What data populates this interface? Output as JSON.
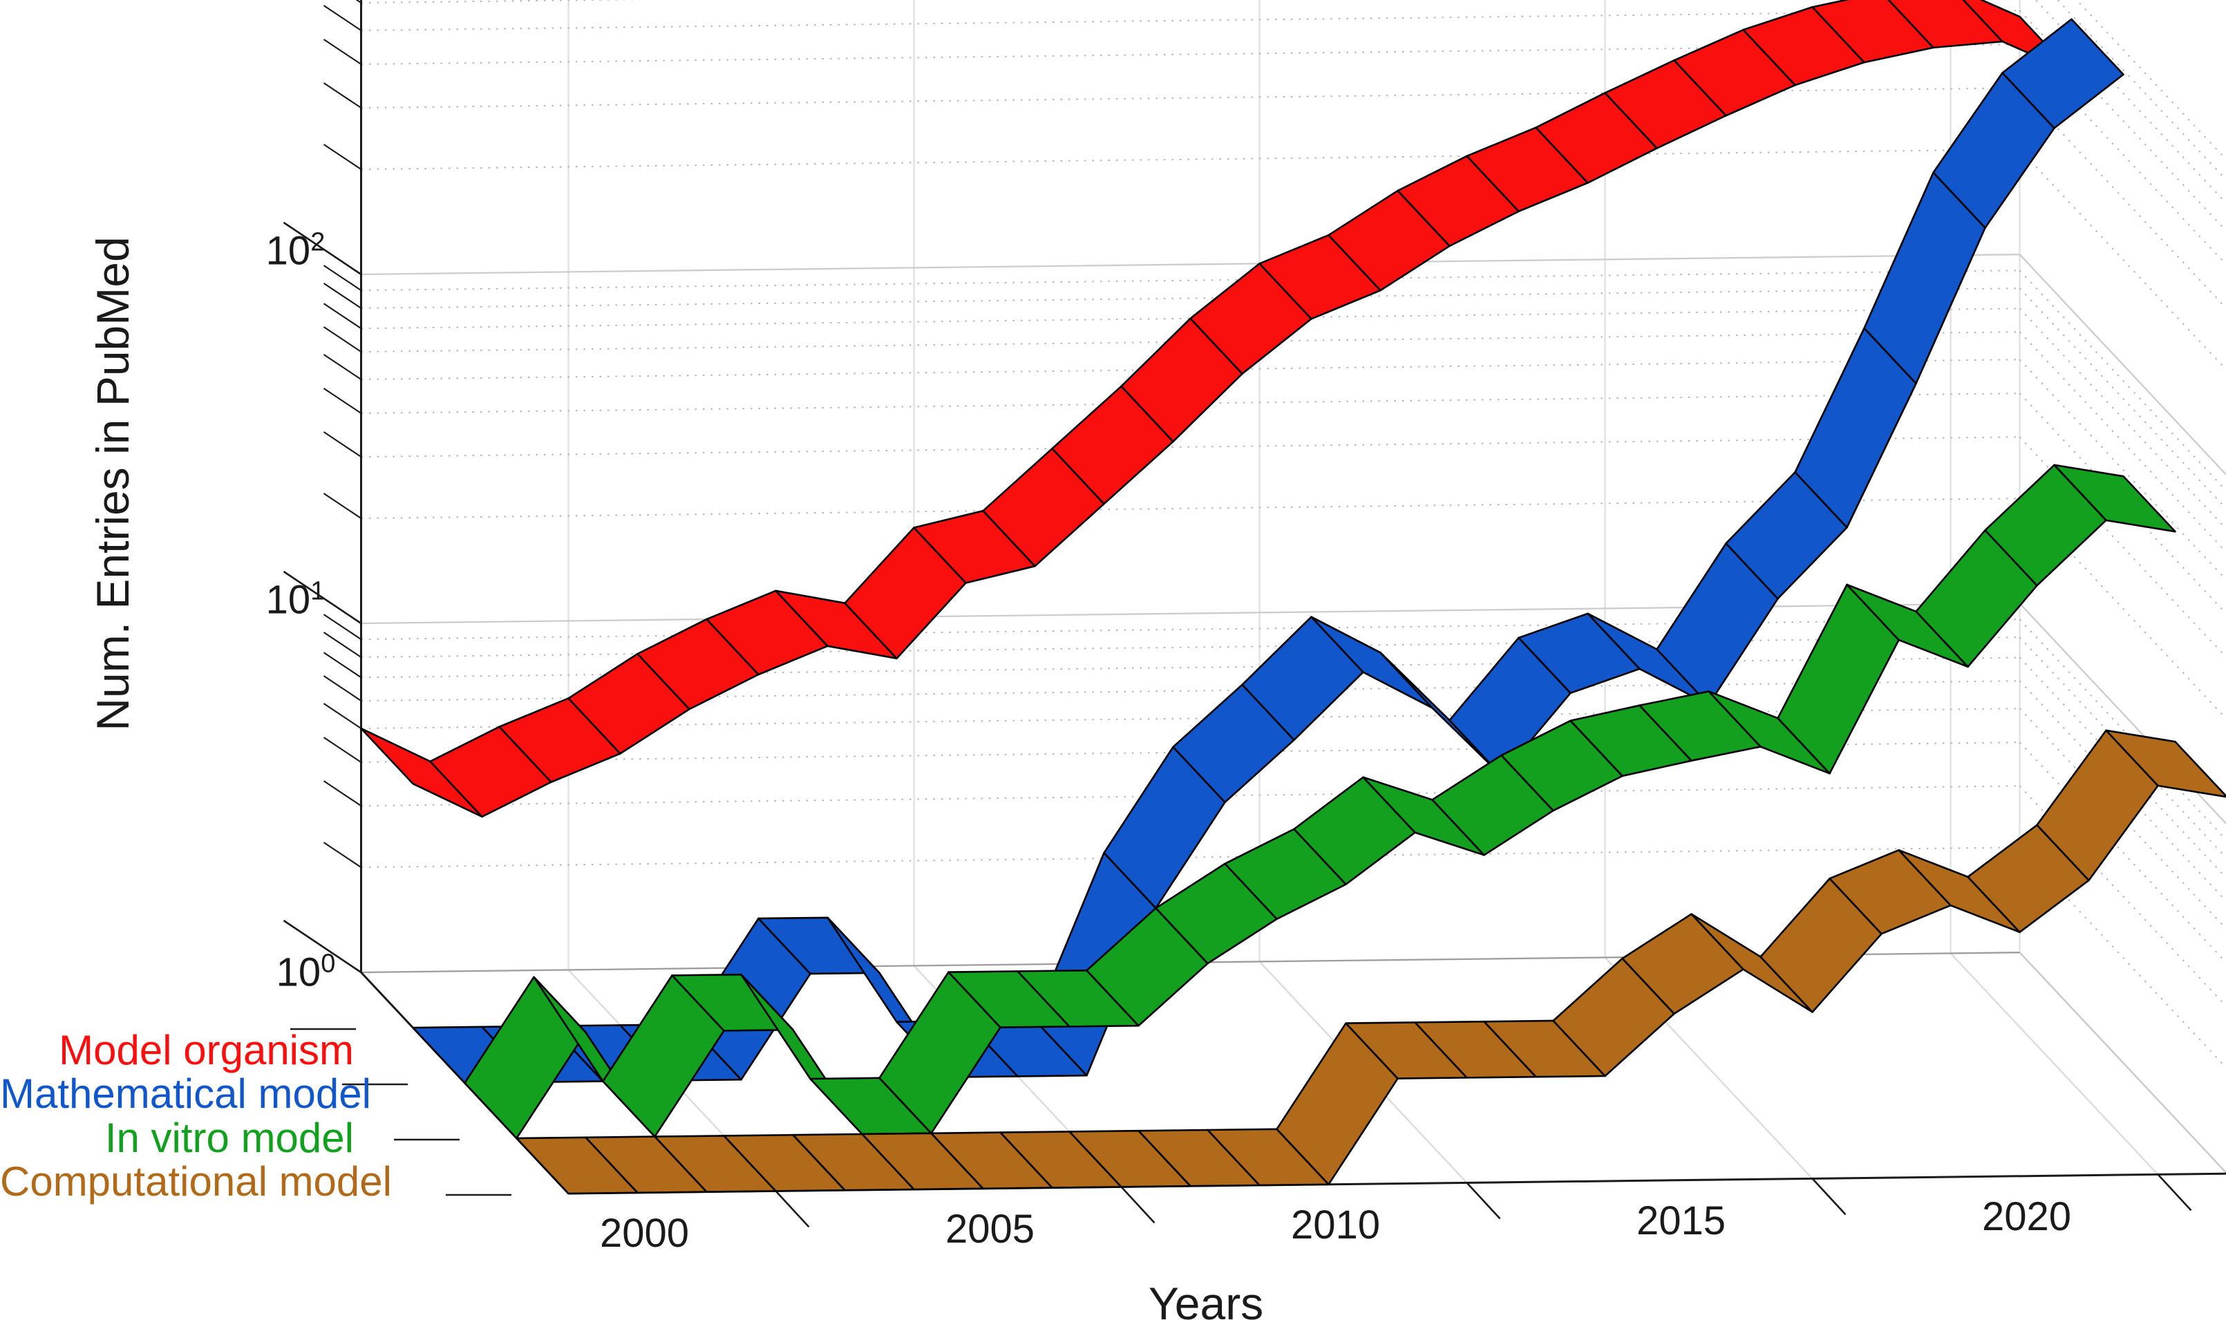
{
  "figure": {
    "type": "3d-ribbon-plot",
    "ylabel": "Num. Entries in PubMed",
    "xlabel": "Years",
    "background": "#ffffff"
  },
  "axes": {
    "x_tick_years": [
      2000,
      2005,
      2010,
      2015,
      2020
    ],
    "y_ticks": [
      {
        "base": "10",
        "exp": "0",
        "value": 1
      },
      {
        "base": "10",
        "exp": "1",
        "value": 10
      },
      {
        "base": "10",
        "exp": "2",
        "value": 100
      }
    ],
    "yscale": "log",
    "xlim": [
      1997,
      2021
    ],
    "ylim": [
      1,
      1000
    ],
    "grid": true,
    "legend_position": "left-bottom"
  },
  "chart_data": {
    "type": "line",
    "variant": "3d-ribbon",
    "title": "",
    "xlabel": "Years",
    "ylabel": "Num. Entries in PubMed",
    "x": [
      1997,
      1998,
      1999,
      2000,
      2001,
      2002,
      2003,
      2004,
      2005,
      2006,
      2007,
      2008,
      2009,
      2010,
      2011,
      2012,
      2013,
      2014,
      2015,
      2016,
      2017,
      2018,
      2019,
      2020,
      2021
    ],
    "series": [
      {
        "name": "Model organism",
        "color": "#FA0F0F",
        "values": [
          5,
          4,
          5,
          6,
          8,
          10,
          12,
          11,
          18,
          20,
          30,
          45,
          70,
          100,
          120,
          160,
          200,
          240,
          300,
          370,
          450,
          520,
          570,
          590,
          480
        ]
      },
      {
        "name": "Mathematical model",
        "color": "#1256CC",
        "values": [
          0,
          0,
          0,
          0,
          1,
          2,
          2,
          0,
          0,
          1,
          3,
          6,
          9,
          14,
          11,
          7,
          12,
          14,
          11,
          22,
          35,
          90,
          250,
          480,
          680
        ]
      },
      {
        "name": "In vitro model",
        "color": "#12A01E",
        "values": [
          0,
          2,
          0,
          2,
          2,
          1,
          0,
          2,
          2,
          2,
          3,
          4,
          5,
          7,
          6,
          8,
          10,
          11,
          12,
          10,
          24,
          20,
          34,
          52,
          48
        ]
      },
      {
        "name": "Computational model",
        "color": "#B16A19",
        "values": [
          0,
          0,
          0,
          0,
          0,
          0,
          0,
          0,
          0,
          0,
          0,
          0,
          2,
          2,
          2,
          2,
          3,
          4,
          3,
          5,
          6,
          5,
          7,
          13,
          12
        ]
      }
    ]
  }
}
